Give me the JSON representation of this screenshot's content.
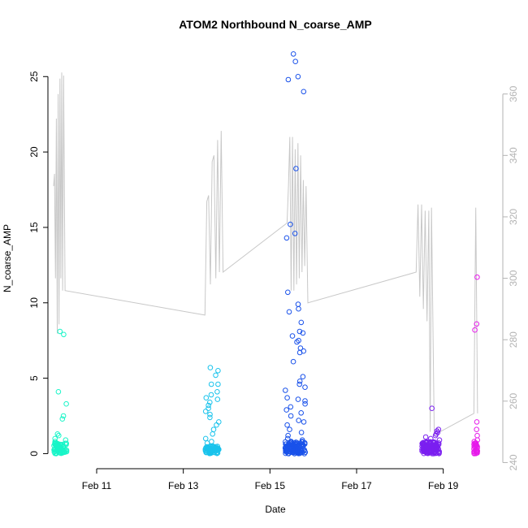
{
  "chart_data": {
    "type": "scatter",
    "title": "ATOM2 Northbound N_coarse_AMP",
    "xlabel": "Date",
    "ylabel": "N_coarse_AMP",
    "xlim": [
      "2025-02-09T21:00",
      "2025-02-20T09:00"
    ],
    "ylim": [
      -1,
      26.9
    ],
    "y2lim": [
      238,
      375
    ],
    "x_ticks": [
      {
        "label": "Feb 11",
        "date": "2025-02-11"
      },
      {
        "label": "Feb 13",
        "date": "2025-02-13"
      },
      {
        "label": "Feb 15",
        "date": "2025-02-15"
      },
      {
        "label": "Feb 17",
        "date": "2025-02-17"
      },
      {
        "label": "Feb 19",
        "date": "2025-02-19"
      }
    ],
    "y_ticks": [
      0,
      5,
      10,
      15,
      20,
      25
    ],
    "y2_ticks": [
      240,
      260,
      280,
      300,
      320,
      340,
      360
    ],
    "grid": false,
    "legend": "none",
    "clusters": [
      {
        "color": "#19f5c8",
        "x_start": "2025-02-10T00:20",
        "x_end": "2025-02-10T07:40",
        "high_points": [
          8.1,
          7.9,
          4.1,
          3.3,
          2.5,
          2.3,
          1.3,
          1.2,
          1.0,
          0.9,
          0.8,
          0.7
        ],
        "low_count": 70,
        "low_max": 0.7
      },
      {
        "color": "#19c3ec",
        "x_start": "2025-02-13T12:00",
        "x_end": "2025-02-13T19:50",
        "high_points": [
          5.7,
          5.5,
          5.2,
          4.6,
          4.6,
          4.1,
          3.9,
          3.7,
          3.6,
          3.4,
          3.2,
          3.0,
          2.8,
          2.6,
          2.4,
          2.1,
          1.9,
          1.6,
          1.3,
          1.0,
          0.8,
          0.7
        ],
        "low_count": 70,
        "low_max": 0.5
      },
      {
        "color": "#1a52ea",
        "x_start": "2025-02-15T08:30",
        "x_end": "2025-02-15T19:40",
        "high_points": [
          26.5,
          26.0,
          25.0,
          24.8,
          24.0,
          18.9,
          15.2,
          14.6,
          14.3,
          10.7,
          9.9,
          9.6,
          9.4,
          8.7,
          8.1,
          8.0,
          7.8,
          7.5,
          7.4,
          7.0,
          6.8,
          6.7,
          6.1,
          5.1,
          4.8,
          4.6,
          4.4,
          4.2,
          3.7,
          3.6,
          3.5,
          3.3,
          3.1,
          2.9,
          2.7,
          2.5,
          2.2,
          2.1,
          1.9,
          1.6,
          1.4,
          1.2,
          1.0,
          0.9
        ],
        "low_count": 120,
        "low_max": 0.8
      },
      {
        "color": "#7b1ff0",
        "x_start": "2025-02-18T12:00",
        "x_end": "2025-02-18T22:00",
        "high_points": [
          3.0,
          1.6,
          1.5,
          1.4,
          1.3,
          1.2,
          1.1,
          1.0,
          0.9
        ],
        "low_count": 110,
        "low_max": 0.8
      },
      {
        "color": "#e619ea",
        "x_start": "2025-02-19T17:00",
        "x_end": "2025-02-19T19:00",
        "high_points": [
          11.7,
          8.6,
          8.2,
          2.1,
          1.6,
          1.2,
          0.9,
          0.8
        ],
        "low_count": 25,
        "low_max": 0.7
      }
    ],
    "secondary_line": {
      "color": "#c8c8c8",
      "axis": "right",
      "points": [
        [
          "2025-02-10T00:10",
          330
        ],
        [
          "2025-02-10T00:40",
          334
        ],
        [
          "2025-02-10T01:10",
          300
        ],
        [
          "2025-02-10T01:40",
          352
        ],
        [
          "2025-02-10T02:10",
          282
        ],
        [
          "2025-02-10T02:40",
          360
        ],
        [
          "2025-02-10T03:10",
          285
        ],
        [
          "2025-02-10T03:40",
          365
        ],
        [
          "2025-02-10T04:10",
          300
        ],
        [
          "2025-02-10T04:40",
          367
        ],
        [
          "2025-02-10T05:10",
          296
        ],
        [
          "2025-02-10T05:40",
          366
        ],
        [
          "2025-02-10T06:30",
          296
        ],
        [
          "2025-02-13T12:00",
          288
        ],
        [
          "2025-02-13T13:00",
          325
        ],
        [
          "2025-02-13T14:00",
          327
        ],
        [
          "2025-02-13T15:00",
          298
        ],
        [
          "2025-02-13T16:00",
          338
        ],
        [
          "2025-02-13T17:00",
          340
        ],
        [
          "2025-02-13T18:00",
          300
        ],
        [
          "2025-02-13T19:00",
          345
        ],
        [
          "2025-02-13T20:00",
          302
        ],
        [
          "2025-02-13T21:00",
          348
        ],
        [
          "2025-02-13T22:00",
          302
        ],
        [
          "2025-02-15T09:30",
          318
        ],
        [
          "2025-02-15T10:15",
          330
        ],
        [
          "2025-02-15T11:00",
          346
        ],
        [
          "2025-02-15T11:45",
          296
        ],
        [
          "2025-02-15T12:30",
          346
        ],
        [
          "2025-02-15T13:15",
          296
        ],
        [
          "2025-02-15T14:00",
          342
        ],
        [
          "2025-02-15T14:45",
          298
        ],
        [
          "2025-02-15T15:30",
          344
        ],
        [
          "2025-02-15T16:15",
          300
        ],
        [
          "2025-02-15T17:00",
          340
        ],
        [
          "2025-02-15T17:45",
          302
        ],
        [
          "2025-02-15T18:30",
          332
        ],
        [
          "2025-02-15T19:15",
          304
        ],
        [
          "2025-02-15T20:00",
          330
        ],
        [
          "2025-02-15T21:00",
          292
        ],
        [
          "2025-02-18T09:00",
          302
        ],
        [
          "2025-02-18T10:00",
          324
        ],
        [
          "2025-02-18T11:00",
          294
        ],
        [
          "2025-02-18T12:00",
          324
        ],
        [
          "2025-02-18T13:00",
          290
        ],
        [
          "2025-02-18T14:00",
          322
        ],
        [
          "2025-02-18T15:00",
          286
        ],
        [
          "2025-02-18T16:00",
          322
        ],
        [
          "2025-02-18T16:45",
          250
        ],
        [
          "2025-02-18T17:30",
          323
        ],
        [
          "2025-02-18T19:00",
          249
        ],
        [
          "2025-02-19T17:00",
          256
        ],
        [
          "2025-02-19T18:00",
          323
        ],
        [
          "2025-02-19T19:00",
          256
        ]
      ]
    }
  }
}
